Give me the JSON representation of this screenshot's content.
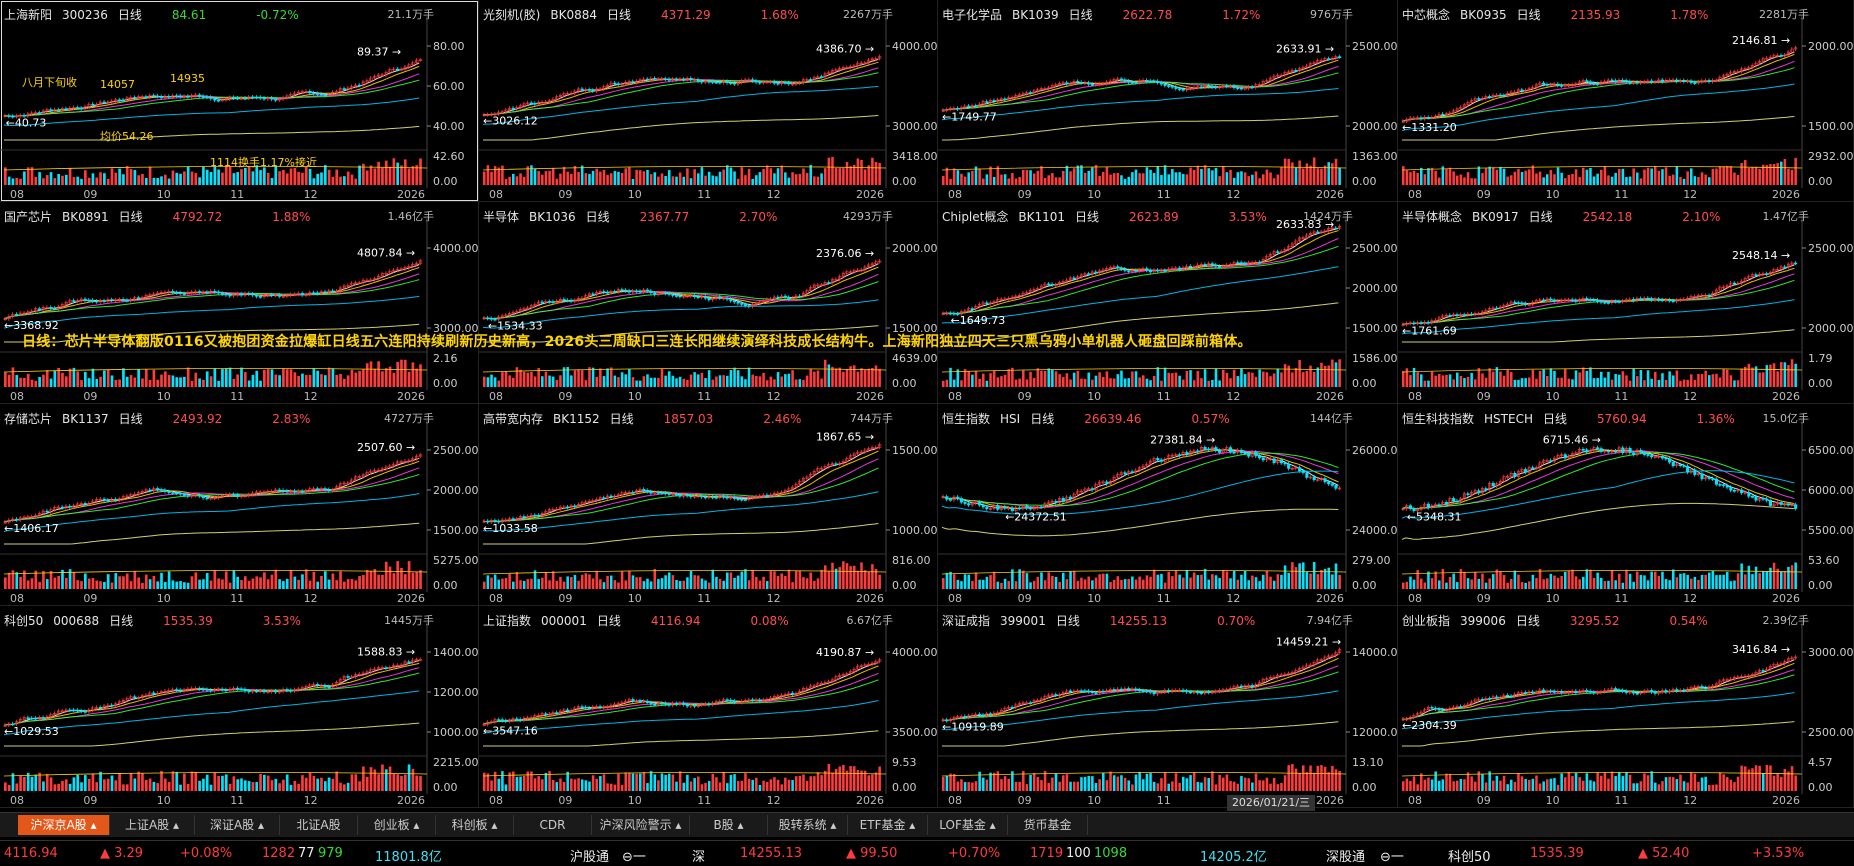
{
  "panels": [
    {
      "name": "上海新阳",
      "code": "300236",
      "period": "日线",
      "price": "84.61",
      "change": "-0.72%",
      "up": false,
      "vol": "21.1万手",
      "high_label": "89.37",
      "low_label": "40.73",
      "axis": [
        "80.00",
        "60.00",
        "40.00"
      ],
      "vol_axis": [
        "42.60",
        "0.00"
      ],
      "selected": true,
      "annotations": [
        "八月下旬收",
        "14057",
        "14935",
        "1114换手1.17%接近",
        "均价54.26"
      ]
    },
    {
      "name": "光刻机(胶)",
      "code": "BK0884",
      "period": "日线",
      "price": "4371.29",
      "change": "1.68%",
      "up": true,
      "vol": "2267万手",
      "high_label": "4386.70",
      "low_label": "3026.12",
      "axis": [
        "4000.00",
        "3000.00"
      ],
      "vol_axis": [
        "3418.00",
        "0.00"
      ]
    },
    {
      "name": "电子化学品",
      "code": "BK1039",
      "period": "日线",
      "price": "2622.78",
      "change": "1.72%",
      "up": true,
      "vol": "976万手",
      "high_label": "2633.91",
      "low_label": "1749.77",
      "axis": [
        "2500.00",
        "2000.00"
      ],
      "vol_axis": [
        "1363.00",
        "0.00"
      ]
    },
    {
      "name": "中芯概念",
      "code": "BK0935",
      "period": "日线",
      "price": "2135.93",
      "change": "1.78%",
      "up": true,
      "vol": "2281万手",
      "high_label": "2146.81",
      "low_label": "1331.20",
      "axis": [
        "2000.00",
        "1500.00"
      ],
      "vol_axis": [
        "2932.00",
        "0.00"
      ]
    },
    {
      "name": "国产芯片",
      "code": "BK0891",
      "period": "日线",
      "price": "4792.72",
      "change": "1.88%",
      "up": true,
      "vol": "1.46亿手",
      "high_label": "4807.84",
      "low_label": "3368.92",
      "axis": [
        "4000.00",
        "3000.00"
      ],
      "vol_axis": [
        "2.16",
        "0.00"
      ]
    },
    {
      "name": "半导体",
      "code": "BK1036",
      "period": "日线",
      "price": "2367.77",
      "change": "2.70%",
      "up": true,
      "vol": "4293万手",
      "high_label": "2376.06",
      "low_label": "1534.33",
      "axis": [
        "2000.00",
        "1500.00"
      ],
      "vol_axis": [
        "4639.00",
        "0.00"
      ]
    },
    {
      "name": "Chiplet概念",
      "code": "BK1101",
      "period": "日线",
      "price": "2623.89",
      "change": "3.53%",
      "up": true,
      "vol": "1424万手",
      "high_label": "2633.83",
      "low_label": "1649.73",
      "axis": [
        "2500.00",
        "2000.00",
        "1500.00"
      ],
      "vol_axis": [
        "1586.00",
        "0.00"
      ]
    },
    {
      "name": "半导体概念",
      "code": "BK0917",
      "period": "日线",
      "price": "2542.18",
      "change": "2.10%",
      "up": true,
      "vol": "1.47亿手",
      "high_label": "2548.14",
      "low_label": "1761.69",
      "axis": [
        "2500.00",
        "2000.00"
      ],
      "vol_axis": [
        "1.79",
        "0.00"
      ]
    },
    {
      "name": "存储芯片",
      "code": "BK1137",
      "period": "日线",
      "price": "2493.92",
      "change": "2.83%",
      "up": true,
      "vol": "4727万手",
      "high_label": "2507.60",
      "low_label": "1406.17",
      "axis": [
        "2500.00",
        "2000.00",
        "1500.00"
      ],
      "vol_axis": [
        "5275.00",
        "0.00"
      ]
    },
    {
      "name": "高带宽内存",
      "code": "BK1152",
      "period": "日线",
      "price": "1857.03",
      "change": "2.46%",
      "up": true,
      "vol": "744万手",
      "high_label": "1867.65",
      "low_label": "1033.58",
      "axis": [
        "1500.00",
        "1000.00"
      ],
      "vol_axis": [
        "816.00",
        "0.00"
      ]
    },
    {
      "name": "恒生指数",
      "code": "HSI",
      "period": "日线",
      "price": "26639.46",
      "change": "0.57%",
      "up": true,
      "vol": "144亿手",
      "high_label": "27381.84",
      "low_label": "24372.51",
      "axis": [
        "26000.0",
        "24000.0"
      ],
      "vol_axis": [
        "279.00",
        "0.00"
      ]
    },
    {
      "name": "恒生科技指数",
      "code": "HSTECH",
      "period": "日线",
      "price": "5760.94",
      "change": "1.36%",
      "up": true,
      "vol": "15.0亿手",
      "high_label": "6715.46",
      "low_label": "5348.31",
      "axis": [
        "6500.00",
        "6000.00",
        "5500.00"
      ],
      "vol_axis": [
        "53.60",
        "0.00"
      ]
    },
    {
      "name": "科创50",
      "code": "000688",
      "period": "日线",
      "price": "1535.39",
      "change": "3.53%",
      "up": true,
      "vol": "1445万手",
      "high_label": "1588.83",
      "low_label": "1029.53",
      "axis": [
        "1400.00",
        "1200.00",
        "1000.00"
      ],
      "vol_axis": [
        "2215.00",
        "0.00"
      ]
    },
    {
      "name": "上证指数",
      "code": "000001",
      "period": "日线",
      "price": "4116.94",
      "change": "0.08%",
      "up": true,
      "vol": "6.67亿手",
      "high_label": "4190.87",
      "low_label": "3547.16",
      "axis": [
        "4000.00",
        "3500.00"
      ],
      "vol_axis": [
        "9.53",
        "0.00"
      ]
    },
    {
      "name": "深证成指",
      "code": "399001",
      "period": "日线",
      "price": "14255.13",
      "change": "0.70%",
      "up": true,
      "vol": "7.94亿手",
      "high_label": "14459.21",
      "low_label": "10919.89",
      "axis": [
        "14000.0",
        "12000.0"
      ],
      "vol_axis": [
        "13.10",
        "0.00"
      ]
    },
    {
      "name": "创业板指",
      "code": "399006",
      "period": "日线",
      "price": "3295.52",
      "change": "0.54%",
      "up": true,
      "vol": "2.39亿手",
      "high_label": "3416.84",
      "low_label": "2304.39",
      "axis": [
        "3000.00",
        "2500.00"
      ],
      "vol_axis": [
        "4.57",
        "0.00"
      ]
    }
  ],
  "months": [
    "08",
    "09",
    "10",
    "11",
    "12",
    "2026"
  ],
  "announcement": "日线：芯片半导体翻版0116又被抱团资金拉爆缸日线五六连阳持续刷新历史新高，2026头三周缺口三连长阳继续演绎科技成长结构牛。上海新阳独立四天三只黑乌鸦小单机器人砸盘回踩前箱体。",
  "date_box": "2026/01/21/三",
  "tabs": [
    {
      "label": "沪深京A股 ▴",
      "active": true
    },
    {
      "label": "上证A股 ▴"
    },
    {
      "label": "深证A股 ▴"
    },
    {
      "label": "北证A股"
    },
    {
      "label": "创业板 ▴"
    },
    {
      "label": "科创板 ▴"
    },
    {
      "label": "CDR"
    },
    {
      "label": "沪深风险警示 ▴"
    },
    {
      "label": "B股 ▴"
    },
    {
      "label": "股转系统 ▴"
    },
    {
      "label": "ETF基金 ▴"
    },
    {
      "label": "LOF基金 ▴"
    },
    {
      "label": "货币基金"
    }
  ],
  "status": {
    "sh_index": "4116.94",
    "sh_delta": "▲ 3.29",
    "sh_pct": "+0.08%",
    "sh_up": "1282",
    "sh_flat": "77",
    "sh_down": "979",
    "sh_amount": "11801.8亿",
    "hgt_label": "沪股通",
    "hgt_value": "⊖一",
    "sz_label": "深",
    "sz_index": "14255.13",
    "sz_delta": "▲ 99.50",
    "sz_pct": "+0.70%",
    "sz_up": "1719",
    "sz_flat": "100",
    "sz_down": "1098",
    "sz_amount": "14205.2亿",
    "sgt_label": "深股通",
    "sgt_value": "⊖一",
    "kc_label": "科创50",
    "kc_index": "1535.39",
    "kc_delta": "▲ 52.40",
    "kc_pct": "+3.53%"
  },
  "colors": {
    "up": "#ff3b3b",
    "down": "#00e5ff",
    "accent": "#e4571a"
  }
}
